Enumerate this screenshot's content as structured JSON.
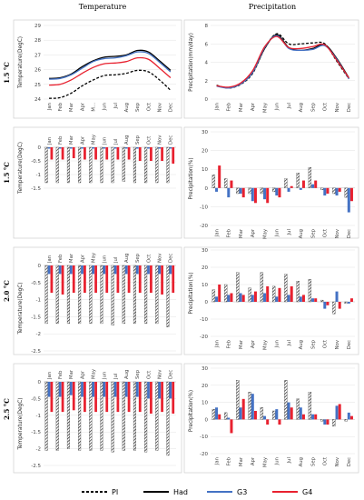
{
  "figure": {
    "column_titles": [
      "Temperature",
      "Precipitation"
    ],
    "row_labels": [
      "1.5 °C",
      "1.5 °C",
      "2.0 °C",
      "2.5 °C"
    ],
    "legend": [
      {
        "label": "PI",
        "color": "#000000",
        "style": "dashed"
      },
      {
        "label": "Had",
        "color": "#000000",
        "style": "solid"
      },
      {
        "label": "G3",
        "color": "#4472c4",
        "style": "solid"
      },
      {
        "label": "G4",
        "color": "#e8212f",
        "style": "solid"
      }
    ],
    "bar_colors": {
      "Had": "#555555",
      "G3": "#4472c4",
      "G4": "#e8212f"
    }
  },
  "chart_data": [
    {
      "id": "temp-abs",
      "type": "line",
      "ylabel": "Temperature(DegC)",
      "categories": [
        "Jan",
        "Feb",
        "Mar",
        "Apr",
        "M...",
        "Jun",
        "Jul",
        "Aug",
        "Sep",
        "Oct",
        "Nov",
        "Dec"
      ],
      "ylim": [
        24,
        29
      ],
      "yticks": [
        24,
        25,
        26,
        27,
        28,
        29
      ],
      "series": [
        {
          "name": "PI",
          "values": [
            24.05,
            24.1,
            24.4,
            24.9,
            25.3,
            25.6,
            25.65,
            25.75,
            25.95,
            25.85,
            25.3,
            24.6
          ]
        },
        {
          "name": "Had",
          "values": [
            25.4,
            25.45,
            25.7,
            26.2,
            26.6,
            26.85,
            26.9,
            27.0,
            27.3,
            27.2,
            26.6,
            25.95
          ]
        },
        {
          "name": "G3",
          "values": [
            25.35,
            25.4,
            25.65,
            26.1,
            26.55,
            26.75,
            26.8,
            26.95,
            27.2,
            27.1,
            26.5,
            25.85
          ]
        },
        {
          "name": "G4",
          "values": [
            24.95,
            25.0,
            25.3,
            25.75,
            26.15,
            26.4,
            26.45,
            26.55,
            26.8,
            26.7,
            26.1,
            25.45
          ]
        }
      ]
    },
    {
      "id": "prec-abs",
      "type": "line",
      "ylabel": "Precipitation(mm/day)",
      "categories": [
        "Jan",
        "Feb",
        "Mar",
        "Apr",
        "May",
        "Jun",
        "Jul",
        "Aug",
        "Sep",
        "Oct",
        "Nov",
        "Dec"
      ],
      "ylim": [
        0,
        8
      ],
      "yticks": [
        0,
        2,
        4,
        6,
        8
      ],
      "series": [
        {
          "name": "PI",
          "values": [
            1.5,
            1.2,
            1.6,
            2.8,
            5.5,
            7.1,
            6.0,
            6.0,
            6.1,
            6.0,
            4.1,
            2.2
          ]
        },
        {
          "name": "Had",
          "values": [
            1.45,
            1.25,
            1.7,
            2.9,
            5.5,
            7.0,
            5.6,
            5.3,
            5.5,
            5.9,
            4.4,
            2.3
          ]
        },
        {
          "name": "G3",
          "values": [
            1.4,
            1.2,
            1.65,
            2.9,
            5.6,
            6.9,
            5.5,
            5.3,
            5.4,
            5.8,
            4.3,
            2.2
          ]
        },
        {
          "name": "G4",
          "values": [
            1.45,
            1.3,
            1.75,
            3.1,
            5.7,
            6.8,
            5.6,
            5.5,
            5.7,
            5.9,
            4.2,
            2.3
          ]
        }
      ]
    },
    {
      "id": "temp-1.5",
      "type": "bar",
      "ylabel": "Temperature(DegC)",
      "categories": [
        "Jan",
        "Feb",
        "Mar",
        "Apr",
        "May",
        "Jun",
        "Jul",
        "Aug",
        "Sep",
        "Oct",
        "Nov",
        "Dec"
      ],
      "ylim": [
        -1.5,
        0
      ],
      "yticks": [
        0,
        -0.5,
        -1,
        -1.5
      ],
      "series": [
        {
          "name": "Had",
          "values": [
            -1.3,
            -1.3,
            -1.3,
            -1.3,
            -1.3,
            -1.3,
            -1.3,
            -1.25,
            -1.3,
            -1.3,
            -1.3,
            -1.3
          ]
        },
        {
          "name": "G3",
          "values": [
            -0.05,
            -0.05,
            -0.05,
            -0.05,
            -0.05,
            -0.05,
            -0.05,
            -0.05,
            -0.05,
            -0.05,
            -0.05,
            -0.05
          ]
        },
        {
          "name": "G4",
          "values": [
            -0.45,
            -0.45,
            -0.4,
            -0.45,
            -0.45,
            -0.45,
            -0.45,
            -0.45,
            -0.5,
            -0.5,
            -0.5,
            -0.6
          ]
        }
      ]
    },
    {
      "id": "prec-1.5",
      "type": "bar",
      "ylabel": "Precipitation(%)",
      "categories": [
        "Jan",
        "Feb",
        "Mar",
        "Apr",
        "May",
        "Jun",
        "Jul",
        "Aug",
        "Sep",
        "Oct",
        "Nov",
        "Dec"
      ],
      "ylim": [
        -20,
        30
      ],
      "yticks": [
        -20,
        -10,
        0,
        10,
        20,
        30
      ],
      "series": [
        {
          "name": "Had",
          "values": [
            7,
            5,
            -3,
            -3,
            -3,
            -2,
            5,
            8,
            11,
            -1,
            -3,
            -5
          ]
        },
        {
          "name": "G3",
          "values": [
            -2,
            -5,
            -3,
            -7,
            -6,
            -4,
            -2,
            -1,
            2,
            -4,
            -4,
            -13
          ]
        },
        {
          "name": "G4",
          "values": [
            12,
            4,
            -5,
            -8,
            -8,
            -5,
            1,
            4,
            4,
            -3,
            -2,
            -7
          ]
        }
      ]
    },
    {
      "id": "temp-2.0",
      "type": "bar",
      "ylabel": "Temperature(DegC)",
      "categories": [
        "Jan",
        "Feb",
        "Mar",
        "Apr",
        "May",
        "Jun",
        "Jul",
        "Aug",
        "Sep",
        "Oct",
        "Nov",
        "Dec"
      ],
      "ylim": [
        -2.5,
        0
      ],
      "yticks": [
        0,
        -0.5,
        -1,
        -1.5,
        -2,
        -2.5
      ],
      "series": [
        {
          "name": "Had",
          "values": [
            -1.7,
            -1.7,
            -1.7,
            -1.7,
            -1.7,
            -1.7,
            -1.75,
            -1.7,
            -1.7,
            -1.7,
            -1.7,
            -1.8
          ]
        },
        {
          "name": "G3",
          "values": [
            -0.25,
            -0.25,
            -0.25,
            -0.25,
            -0.25,
            -0.25,
            -0.25,
            -0.25,
            -0.25,
            -0.25,
            -0.25,
            -0.25
          ]
        },
        {
          "name": "G4",
          "values": [
            -0.8,
            -0.85,
            -0.8,
            -0.8,
            -0.8,
            -0.8,
            -0.8,
            -0.8,
            -0.8,
            -0.8,
            -0.85,
            -0.8
          ]
        }
      ]
    },
    {
      "id": "prec-2.0",
      "type": "bar",
      "ylabel": "Precipitation(%)",
      "categories": [
        "Jan",
        "Feb",
        "Mar",
        "Apr",
        "May",
        "Jun",
        "Jul",
        "Aug",
        "Sep",
        "Oct",
        "Nov",
        "Dec"
      ],
      "ylim": [
        -20,
        30
      ],
      "yticks": [
        -20,
        -10,
        0,
        10,
        20,
        30
      ],
      "series": [
        {
          "name": "Had",
          "values": [
            7,
            10,
            17,
            8,
            17,
            9,
            16,
            12,
            13,
            1,
            -7,
            -1
          ]
        },
        {
          "name": "G3",
          "values": [
            3,
            4,
            5,
            4,
            5,
            3,
            4,
            3,
            2,
            -4,
            6,
            -1
          ]
        },
        {
          "name": "G4",
          "values": [
            10,
            5,
            4,
            6,
            9,
            8,
            9,
            4,
            2,
            -2,
            -4,
            2
          ]
        }
      ]
    },
    {
      "id": "temp-2.5",
      "type": "bar",
      "ylabel": "Temperature(DegC)",
      "categories": [
        "Jan",
        "Feb",
        "Mar",
        "Apr",
        "May",
        "Jun",
        "Jul",
        "Aug",
        "Sep",
        "Oct",
        "Nov",
        "Dec"
      ],
      "ylim": [
        -2.5,
        0
      ],
      "yticks": [
        0,
        -0.5,
        -1,
        -1.5,
        -2,
        -2.5
      ],
      "series": [
        {
          "name": "Had",
          "values": [
            -2.05,
            -2.05,
            -2.0,
            -2.05,
            -2.05,
            -2.05,
            -2.1,
            -2.05,
            -2.05,
            -2.1,
            -2.05,
            -2.2
          ]
        },
        {
          "name": "G3",
          "values": [
            -0.45,
            -0.45,
            -0.4,
            -0.45,
            -0.45,
            -0.45,
            -0.45,
            -0.45,
            -0.45,
            -0.5,
            -0.5,
            -0.5
          ]
        },
        {
          "name": "G4",
          "values": [
            -0.9,
            -0.9,
            -0.85,
            -0.9,
            -0.9,
            -0.9,
            -0.9,
            -0.9,
            -0.9,
            -0.95,
            -0.9,
            -0.95
          ]
        }
      ]
    },
    {
      "id": "prec-2.5",
      "type": "bar",
      "ylabel": "Precipitation(%)",
      "categories": [
        "Jan",
        "Feb",
        "Mar",
        "Apr",
        "May",
        "Jun",
        "Jul",
        "Aug",
        "Sep",
        "Oct",
        "Nov",
        "Dec"
      ],
      "ylim": [
        -20,
        30
      ],
      "yticks": [
        -20,
        -10,
        0,
        10,
        20,
        30
      ],
      "series": [
        {
          "name": "Had",
          "values": [
            6,
            4,
            23,
            16,
            7,
            5,
            23,
            12,
            16,
            -1,
            -4,
            -1
          ]
        },
        {
          "name": "G3",
          "values": [
            7,
            1,
            7,
            15,
            2,
            6,
            10,
            7,
            3,
            -3,
            8,
            4
          ]
        },
        {
          "name": "G4",
          "values": [
            3,
            -8,
            12,
            5,
            -3,
            -3,
            7,
            3,
            3,
            -3,
            9,
            2
          ]
        }
      ]
    }
  ]
}
